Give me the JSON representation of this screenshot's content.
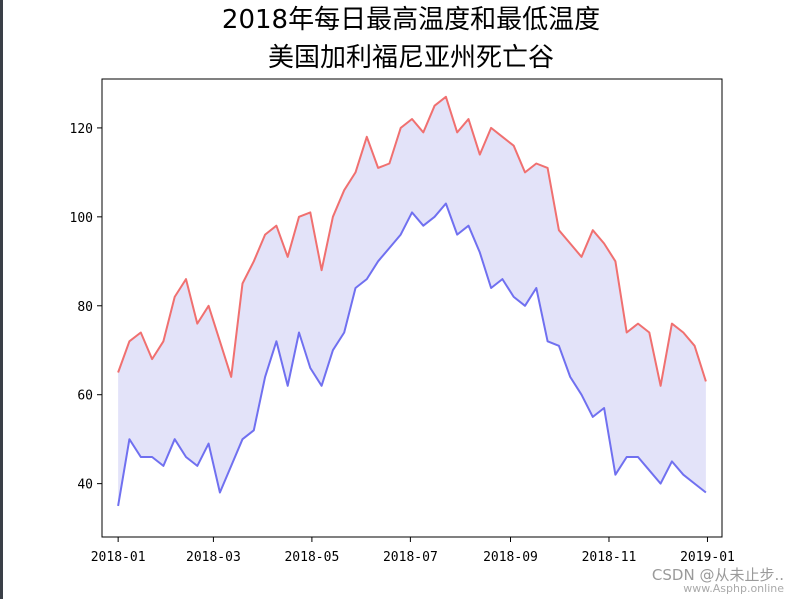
{
  "chart_data": {
    "type": "line",
    "title_line1": "2018年每日最高温度和最低温度",
    "title_line2": "美国加利福尼亚州死亡谷",
    "xlabel": "",
    "ylabel": "",
    "xlim": [
      "2018-01",
      "2019-01"
    ],
    "ylim": [
      28,
      131
    ],
    "grid": false,
    "fill_between": true,
    "x_ticks": [
      "2018-01",
      "2018-03",
      "2018-05",
      "2018-07",
      "2018-09",
      "2018-11",
      "2019-01"
    ],
    "y_ticks": [
      40,
      60,
      80,
      100,
      120
    ],
    "x": [
      "2018-01-01",
      "2018-01-08",
      "2018-01-15",
      "2018-01-22",
      "2018-01-29",
      "2018-02-05",
      "2018-02-12",
      "2018-02-19",
      "2018-02-26",
      "2018-03-05",
      "2018-03-12",
      "2018-03-19",
      "2018-03-26",
      "2018-04-02",
      "2018-04-09",
      "2018-04-16",
      "2018-04-23",
      "2018-04-30",
      "2018-05-07",
      "2018-05-14",
      "2018-05-21",
      "2018-05-28",
      "2018-06-04",
      "2018-06-11",
      "2018-06-18",
      "2018-06-25",
      "2018-07-02",
      "2018-07-09",
      "2018-07-16",
      "2018-07-23",
      "2018-07-30",
      "2018-08-06",
      "2018-08-13",
      "2018-08-20",
      "2018-08-27",
      "2018-09-03",
      "2018-09-10",
      "2018-09-17",
      "2018-09-24",
      "2018-10-01",
      "2018-10-08",
      "2018-10-15",
      "2018-10-22",
      "2018-10-29",
      "2018-11-05",
      "2018-11-12",
      "2018-11-19",
      "2018-11-26",
      "2018-12-03",
      "2018-12-10",
      "2018-12-17",
      "2018-12-24",
      "2018-12-31"
    ],
    "series": [
      {
        "key": "high",
        "color": "#f07070",
        "values": [
          65,
          72,
          74,
          68,
          72,
          82,
          86,
          76,
          80,
          72,
          64,
          85,
          90,
          96,
          98,
          91,
          100,
          101,
          88,
          100,
          106,
          110,
          118,
          111,
          112,
          120,
          122,
          119,
          125,
          127,
          119,
          122,
          114,
          120,
          118,
          116,
          110,
          112,
          111,
          97,
          94,
          91,
          97,
          94,
          90,
          74,
          76,
          74,
          62,
          76,
          74,
          71,
          63
        ]
      },
      {
        "key": "low",
        "color": "#7070f0",
        "values": [
          35,
          50,
          46,
          46,
          44,
          50,
          46,
          44,
          49,
          38,
          44,
          50,
          52,
          64,
          72,
          62,
          74,
          66,
          62,
          70,
          74,
          84,
          86,
          90,
          93,
          96,
          101,
          98,
          100,
          103,
          96,
          98,
          92,
          84,
          86,
          82,
          80,
          84,
          72,
          71,
          64,
          60,
          55,
          57,
          42,
          46,
          46,
          43,
          40,
          45,
          42,
          40,
          38
        ]
      }
    ],
    "fill_color": "#e3e3f9",
    "watermark_line1": "CSDN @从未止步..",
    "watermark_line2": "www.Asphp.online"
  }
}
